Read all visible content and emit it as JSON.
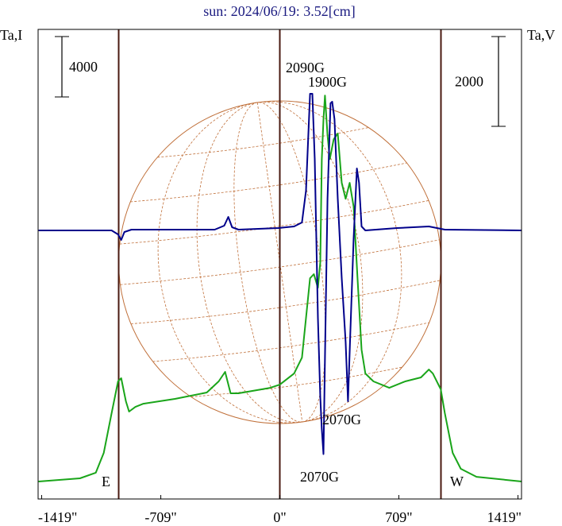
{
  "chart_data": {
    "type": "line",
    "title": "sun: 2024/06/19: 3.52[cm]",
    "y_label": "Ta,I",
    "y2_label": "Ta,V",
    "xlim": [
      -1440,
      1440
    ],
    "xticks": [
      {
        "value": -1419,
        "label": "-1419\""
      },
      {
        "value": -709,
        "label": "-709\""
      },
      {
        "value": 0,
        "label": "0\""
      },
      {
        "value": 709,
        "label": "709\""
      },
      {
        "value": 1419,
        "label": "1419\""
      }
    ],
    "ylim": [
      0,
      31100
    ],
    "y2lim": [
      -6000,
      4460
    ],
    "yscale": 4000,
    "y2scale": 2000,
    "vlines": [
      -960,
      0,
      960
    ],
    "annotations": [
      "2090G",
      "1900G",
      "2070G",
      "2070G",
      "E",
      "W"
    ],
    "series": [
      {
        "name": "I",
        "color": "#1aa51a",
        "x": [
          -1437,
          -1191,
          -1096,
          -1049,
          -1002,
          -964,
          -945,
          -917,
          -898,
          -860,
          -813,
          -624,
          -435,
          -364,
          -326,
          -293,
          -246,
          -57,
          0,
          85,
          132,
          156,
          180,
          203,
          227,
          241,
          250,
          260,
          269,
          284,
          298,
          321,
          345,
          369,
          392,
          416,
          440,
          463,
          487,
          510,
          558,
          652,
          747,
          841,
          888,
          912,
          959,
          983,
          1030,
          1078,
          1172,
          1441
        ],
        "values": [
          1160,
          1370,
          1740,
          3050,
          5680,
          7790,
          8000,
          6470,
          5790,
          6100,
          6310,
          6630,
          7050,
          7790,
          8420,
          7000,
          7000,
          7360,
          7570,
          8310,
          9360,
          11990,
          14620,
          14890,
          13990,
          15680,
          22510,
          25140,
          26720,
          24090,
          22510,
          23830,
          24200,
          20940,
          19880,
          20940,
          19360,
          14620,
          9890,
          8310,
          7790,
          7360,
          7790,
          8050,
          8570,
          8310,
          7260,
          5680,
          3050,
          2000,
          1470,
          1160
        ]
      },
      {
        "name": "V",
        "color": "#00008b",
        "axis": "y2",
        "x": [
          -1437,
          -1002,
          -964,
          -945,
          -926,
          -884,
          -388,
          -331,
          -307,
          -284,
          -246,
          -9,
          85,
          132,
          156,
          180,
          194,
          208,
          227,
          241,
          250,
          260,
          269,
          284,
          302,
          312,
          326,
          345,
          369,
          392,
          406,
          420,
          440,
          459,
          472,
          487,
          510,
          699,
          888,
          936,
          983,
          1441
        ],
        "values": [
          -18,
          -18,
          -106,
          -230,
          -53,
          0,
          0,
          89,
          283,
          53,
          0,
          35,
          71,
          159,
          867,
          3027,
          3027,
          1575,
          -1965,
          -3735,
          -4443,
          -5000,
          -2850,
          690,
          2814,
          2850,
          2460,
          690,
          -1080,
          -2496,
          -3823,
          -2319,
          -195,
          1363,
          1044,
          71,
          -18,
          35,
          71,
          35,
          0,
          -18
        ]
      }
    ]
  }
}
